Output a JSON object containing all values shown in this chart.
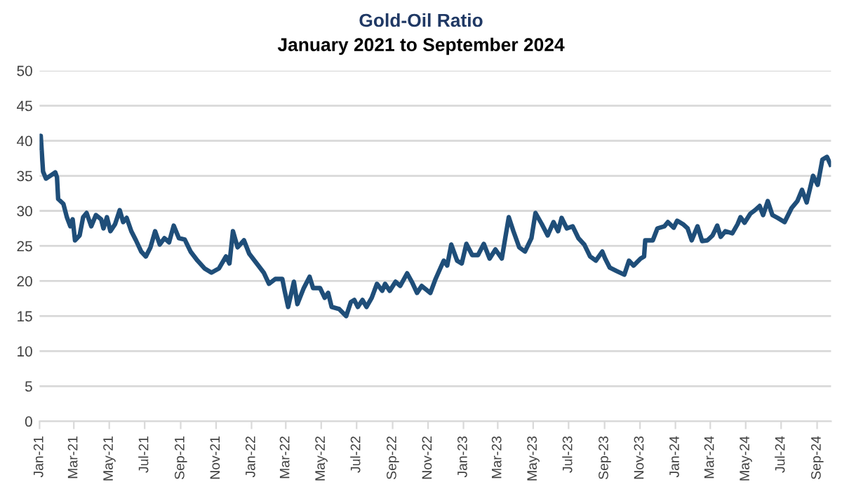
{
  "chart_data": {
    "type": "line",
    "title": "Gold-Oil Ratio",
    "subtitle": "January 2021 to September 2024",
    "series": [
      {
        "color": "#1f4e79",
        "x": [
          "2021-01-01",
          "2021-01-03",
          "2021-01-07",
          "2021-01-12",
          "2021-01-21",
          "2021-01-28",
          "2021-01-31",
          "2021-02-02",
          "2021-02-11",
          "2021-02-17",
          "2021-02-23",
          "2021-02-27",
          "2021-03-03",
          "2021-03-11",
          "2021-03-17",
          "2021-03-23",
          "2021-03-31",
          "2021-04-08",
          "2021-04-17",
          "2021-04-21",
          "2021-04-27",
          "2021-05-03",
          "2021-05-11",
          "2021-05-19",
          "2021-05-25",
          "2021-05-31",
          "2021-06-08",
          "2021-06-16",
          "2021-06-25",
          "2021-07-03",
          "2021-07-11",
          "2021-07-19",
          "2021-07-27",
          "2021-08-04",
          "2021-08-12",
          "2021-08-20",
          "2021-08-29",
          "2021-09-08",
          "2021-09-18",
          "2021-09-30",
          "2021-10-12",
          "2021-10-24",
          "2021-11-06",
          "2021-11-18",
          "2021-11-24",
          "2021-11-30",
          "2021-12-08",
          "2021-12-19",
          "2021-12-28",
          "2022-01-10",
          "2022-01-22",
          "2022-01-31",
          "2022-02-11",
          "2022-02-23",
          "2022-02-27",
          "2022-03-05",
          "2022-03-15",
          "2022-03-21",
          "2022-04-01",
          "2022-04-11",
          "2022-04-17",
          "2022-04-29",
          "2022-05-07",
          "2022-05-13",
          "2022-05-19",
          "2022-06-01",
          "2022-06-13",
          "2022-06-21",
          "2022-06-27",
          "2022-07-03",
          "2022-07-11",
          "2022-07-18",
          "2022-07-27",
          "2022-08-05",
          "2022-08-14",
          "2022-08-19",
          "2022-08-27",
          "2022-09-06",
          "2022-09-14",
          "2022-09-26",
          "2022-10-04",
          "2022-10-13",
          "2022-10-21",
          "2022-11-05",
          "2022-11-14",
          "2022-11-22",
          "2022-11-28",
          "2022-12-04",
          "2022-12-11",
          "2022-12-21",
          "2022-12-29",
          "2023-01-06",
          "2023-01-16",
          "2023-01-26",
          "2023-02-05",
          "2023-02-15",
          "2023-02-25",
          "2023-03-08",
          "2023-03-20",
          "2023-03-28",
          "2023-04-07",
          "2023-04-17",
          "2023-04-28",
          "2023-05-05",
          "2023-05-16",
          "2023-05-26",
          "2023-06-05",
          "2023-06-13",
          "2023-06-19",
          "2023-06-28",
          "2023-07-08",
          "2023-07-18",
          "2023-07-28",
          "2023-08-07",
          "2023-08-17",
          "2023-08-28",
          "2023-09-02",
          "2023-09-10",
          "2023-09-22",
          "2023-10-05",
          "2023-10-13",
          "2023-10-21",
          "2023-11-02",
          "2023-11-08",
          "2023-11-10",
          "2023-11-23",
          "2023-12-01",
          "2023-12-13",
          "2023-12-19",
          "2023-12-29",
          "2024-01-04",
          "2024-01-14",
          "2024-01-22",
          "2024-01-29",
          "2024-02-08",
          "2024-02-16",
          "2024-02-25",
          "2024-03-05",
          "2024-03-13",
          "2024-03-19",
          "2024-03-27",
          "2024-04-08",
          "2024-04-17",
          "2024-04-22",
          "2024-04-29",
          "2024-05-09",
          "2024-05-17",
          "2024-05-25",
          "2024-05-31",
          "2024-06-08",
          "2024-06-16",
          "2024-06-25",
          "2024-07-07",
          "2024-07-19",
          "2024-07-29",
          "2024-08-06",
          "2024-08-14",
          "2024-08-25",
          "2024-09-02",
          "2024-09-10",
          "2024-09-18",
          "2024-09-24"
        ],
        "values": [
          38.9,
          40.7,
          35.6,
          34.6,
          35.1,
          35.5,
          34.8,
          31.7,
          31.0,
          29.1,
          27.8,
          28.8,
          25.8,
          26.5,
          29.1,
          29.7,
          27.8,
          29.4,
          28.8,
          27.5,
          29.1,
          27.1,
          28.1,
          30.1,
          28.4,
          29.0,
          27.1,
          25.8,
          24.2,
          23.5,
          24.8,
          27.1,
          25.2,
          26.1,
          25.5,
          27.9,
          26.1,
          25.9,
          24.2,
          22.9,
          21.8,
          21.2,
          21.8,
          23.5,
          22.5,
          27.1,
          24.8,
          25.8,
          23.9,
          22.5,
          21.2,
          19.6,
          20.3,
          20.3,
          18.6,
          16.3,
          19.9,
          16.7,
          19.0,
          20.6,
          19.0,
          19.0,
          17.6,
          18.3,
          16.3,
          16.0,
          15.0,
          17.0,
          17.3,
          16.3,
          17.3,
          16.3,
          17.6,
          19.6,
          18.6,
          19.6,
          18.6,
          19.9,
          19.3,
          21.1,
          19.9,
          18.3,
          19.3,
          18.3,
          20.3,
          21.8,
          22.9,
          22.2,
          25.2,
          22.9,
          22.5,
          25.3,
          23.7,
          23.7,
          25.3,
          23.2,
          24.5,
          23.2,
          29.1,
          27.1,
          24.8,
          24.2,
          26.1,
          29.7,
          28.1,
          26.5,
          28.4,
          27.1,
          29.0,
          27.5,
          27.8,
          26.1,
          25.2,
          23.5,
          22.9,
          24.2,
          23.2,
          21.9,
          21.4,
          20.9,
          22.9,
          22.2,
          23.2,
          23.5,
          25.8,
          25.8,
          27.5,
          27.8,
          28.4,
          27.6,
          28.6,
          28.1,
          27.5,
          25.8,
          27.8,
          25.7,
          25.8,
          26.5,
          27.9,
          26.3,
          27.1,
          26.8,
          28.1,
          29.1,
          28.3,
          29.6,
          30.1,
          30.7,
          29.4,
          31.4,
          29.4,
          29.0,
          28.4,
          30.4,
          31.4,
          33.0,
          31.2,
          35.0,
          33.7,
          37.3,
          37.7,
          36.6
        ]
      }
    ],
    "xlim": [
      "2021-01-01",
      "2024-09-25"
    ],
    "xticks": [
      {
        "value": "2021-01-01",
        "label": "Jan-21"
      },
      {
        "value": "2021-03-01",
        "label": "Mar-21"
      },
      {
        "value": "2021-05-01",
        "label": "May-21"
      },
      {
        "value": "2021-07-01",
        "label": "Jul-21"
      },
      {
        "value": "2021-09-01",
        "label": "Sep-21"
      },
      {
        "value": "2021-11-01",
        "label": "Nov-21"
      },
      {
        "value": "2022-01-01",
        "label": "Jan-22"
      },
      {
        "value": "2022-03-01",
        "label": "Mar-22"
      },
      {
        "value": "2022-05-01",
        "label": "May-22"
      },
      {
        "value": "2022-07-01",
        "label": "Jul-22"
      },
      {
        "value": "2022-09-01",
        "label": "Sep-22"
      },
      {
        "value": "2022-11-01",
        "label": "Nov-22"
      },
      {
        "value": "2023-01-01",
        "label": "Jan-23"
      },
      {
        "value": "2023-03-01",
        "label": "Mar-23"
      },
      {
        "value": "2023-05-01",
        "label": "May-23"
      },
      {
        "value": "2023-07-01",
        "label": "Jul-23"
      },
      {
        "value": "2023-09-01",
        "label": "Sep-23"
      },
      {
        "value": "2023-11-01",
        "label": "Nov-23"
      },
      {
        "value": "2024-01-01",
        "label": "Jan-24"
      },
      {
        "value": "2024-03-01",
        "label": "Mar-24"
      },
      {
        "value": "2024-05-01",
        "label": "May-24"
      },
      {
        "value": "2024-07-01",
        "label": "Jul-24"
      },
      {
        "value": "2024-09-01",
        "label": "Sep-24"
      }
    ],
    "ylim": [
      0,
      50
    ],
    "yticks": [
      0,
      5,
      10,
      15,
      20,
      25,
      30,
      35,
      40,
      45,
      50
    ],
    "grid": "y",
    "legend": false,
    "marker": "none",
    "line_style": "solid"
  }
}
